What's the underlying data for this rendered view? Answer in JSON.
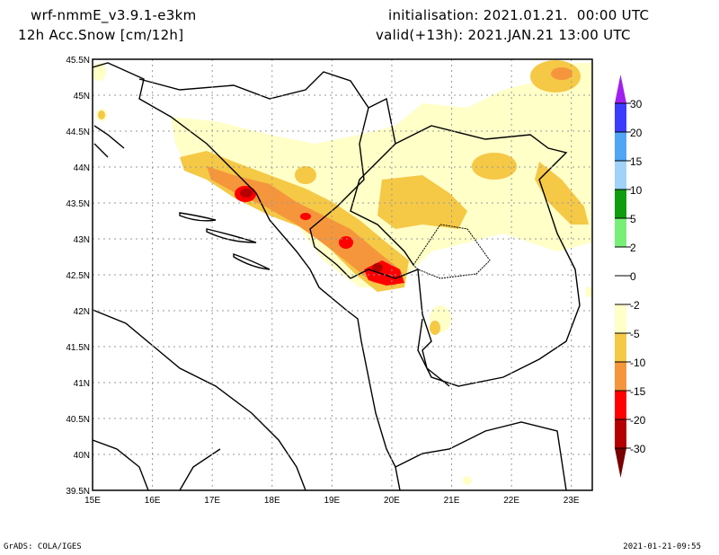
{
  "header": {
    "model": "wrf-nmmE_v3.9.1-e3km",
    "field": "12h Acc.Snow [cm/12h]",
    "init": "initialisation: 2021.01.21.  00:00 UTC",
    "valid": "valid(+13h): 2021.JAN.21 13:00 UTC"
  },
  "map": {
    "lon_range": [
      15,
      23.35
    ],
    "lat_range": [
      39.5,
      45.5
    ],
    "lon_ticks": [
      "15E",
      "16E",
      "17E",
      "18E",
      "19E",
      "20E",
      "21E",
      "22E",
      "23E"
    ],
    "lon_values": [
      15,
      16,
      17,
      18,
      19,
      20,
      21,
      22,
      23
    ],
    "lat_ticks": [
      "39.5N",
      "40N",
      "40.5N",
      "41N",
      "41.5N",
      "42N",
      "42.5N",
      "43N",
      "43.5N",
      "44N",
      "44.5N",
      "45N",
      "45.5N"
    ],
    "lat_values": [
      39.5,
      40,
      40.5,
      41,
      41.5,
      42,
      42.5,
      43,
      43.5,
      44,
      44.5,
      45,
      45.5
    ]
  },
  "colorbar": {
    "labels": [
      "30",
      "20",
      "15",
      "10",
      "5",
      "2",
      "0",
      "-2",
      "-5",
      "-10",
      "-15",
      "-20",
      "-30"
    ],
    "colors": [
      "#a020f0",
      "#3c3cff",
      "#50a5f5",
      "#a0d2fa",
      "#0f9d0f",
      "#78f078",
      "#ffffff",
      "#ffffff",
      "#ffffc8",
      "#f5c846",
      "#f5963c",
      "#ff0000",
      "#b40000",
      "#780000"
    ]
  },
  "footer": {
    "left": "GrADS: COLA/IGES",
    "right": "2021-01-21-09:55"
  }
}
